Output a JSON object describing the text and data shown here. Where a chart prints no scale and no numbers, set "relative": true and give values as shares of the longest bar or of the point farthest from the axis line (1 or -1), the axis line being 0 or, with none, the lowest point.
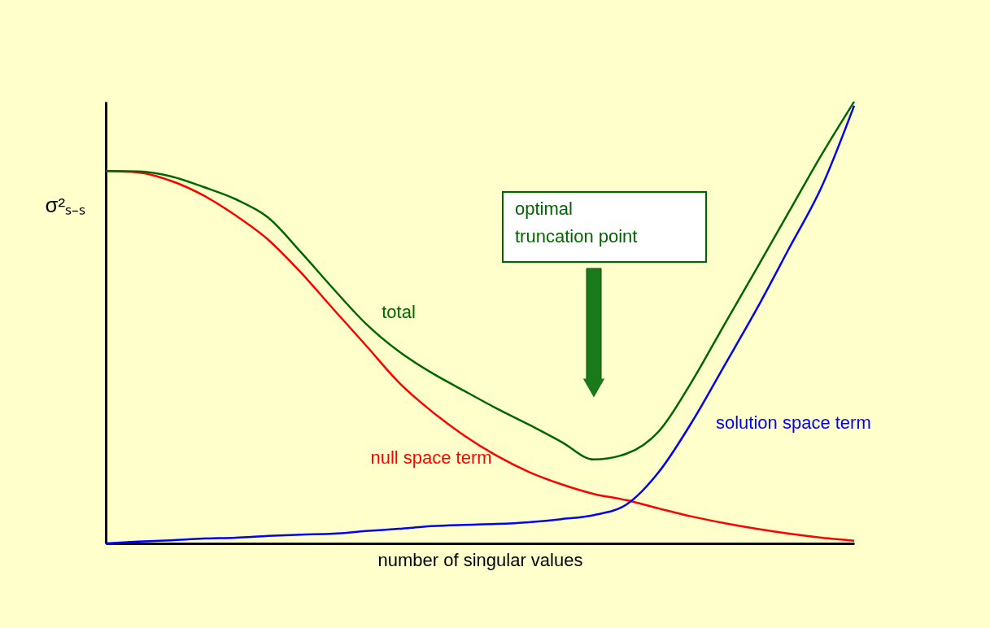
{
  "chart_data": {
    "type": "line",
    "relative": true,
    "xlabel": "number of singular values",
    "ylabel": "σ²ₛ₋ₛ",
    "categories": [
      null,
      null,
      null,
      null,
      null,
      null,
      null,
      null,
      null,
      null,
      null,
      null,
      null,
      null,
      null,
      null,
      null,
      null,
      null,
      null,
      null,
      null,
      null,
      null
    ],
    "series": [
      {
        "name": "null space term",
        "color": "#ff0000",
        "values": [
          0.843,
          0.84,
          0.821,
          0.788,
          0.742,
          0.687,
          0.613,
          0.53,
          0.448,
          0.365,
          0.3,
          0.245,
          0.199,
          0.162,
          0.134,
          0.112,
          0.098,
          0.079,
          0.061,
          0.046,
          0.033,
          0.022,
          0.013,
          0.006
        ]
      },
      {
        "name": "total",
        "color": "#006600",
        "values": [
          0.843,
          0.842,
          0.831,
          0.807,
          0.779,
          0.737,
          0.659,
          0.576,
          0.497,
          0.435,
          0.387,
          0.346,
          0.306,
          0.269,
          0.23,
          0.19,
          0.203,
          0.254,
          0.365,
          0.494,
          0.622,
          0.751,
          0.88,
          1.0
        ]
      },
      {
        "name": "solution space term",
        "color": "#0000ff",
        "values": [
          0,
          0.004,
          0.007,
          0.011,
          0.013,
          0.017,
          0.02,
          0.022,
          0.028,
          0.033,
          0.039,
          0.042,
          0.044,
          0.048,
          0.055,
          0.064,
          0.088,
          0.162,
          0.273,
          0.401,
          0.53,
          0.668,
          0.807,
          0.991
        ]
      }
    ],
    "annotations": [
      "optimal truncation point"
    ],
    "grid": false,
    "marker": "none",
    "line_style": "solid"
  }
}
